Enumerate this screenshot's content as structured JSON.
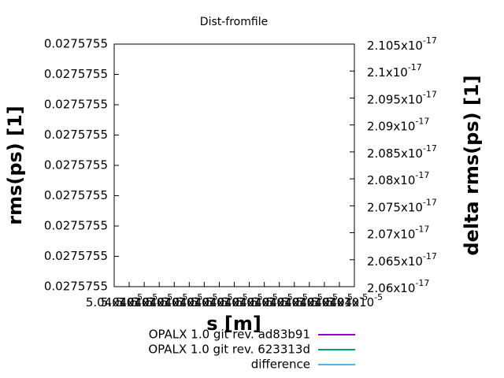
{
  "chart_data": {
    "type": "line",
    "title": "Dist-fromfile",
    "x_label": "s [m]",
    "y_label": "rms(ps) [1]",
    "y2_label": "delta rms(ps) [1]",
    "x": [],
    "series": [
      {
        "name": "OPALX 1.0 git rev. ad83b91",
        "color": "#9400d3",
        "values": []
      },
      {
        "name": "OPALX 1.0 git rev. 623313d",
        "color": "#009e73",
        "values": []
      },
      {
        "name": "difference",
        "color": "#56b4e9",
        "values": [],
        "axis": "y2"
      }
    ],
    "xlim": [
      5.04e-05,
      5.04016e-05
    ],
    "xticks": [
      {
        "value": 5.04e-05,
        "label": "5.04x10-5"
      },
      {
        "value": 5.04001e-05,
        "label": "5.04x10-5"
      },
      {
        "value": 5.04002e-05,
        "label": "5.04x10-5"
      },
      {
        "value": 5.04003e-05,
        "label": "5.04x10-5"
      },
      {
        "value": 5.04004e-05,
        "label": "5.04x10-5"
      },
      {
        "value": 5.04005e-05,
        "label": "5.04x10-5"
      },
      {
        "value": 5.04006e-05,
        "label": "5.04x10-5"
      },
      {
        "value": 5.04007e-05,
        "label": "5.04x10-5"
      },
      {
        "value": 5.04008e-05,
        "label": "5.04x10-5"
      },
      {
        "value": 5.04009e-05,
        "label": "5.04x10-5"
      },
      {
        "value": 5.0401e-05,
        "label": "5.04x10-5"
      },
      {
        "value": 5.04011e-05,
        "label": "5.04x10-5"
      },
      {
        "value": 5.04012e-05,
        "label": "5.04x10-5"
      },
      {
        "value": 5.04013e-05,
        "label": "5.04x10-5"
      },
      {
        "value": 5.04014e-05,
        "label": "5.04x10-5"
      },
      {
        "value": 5.04015e-05,
        "label": "5.04x10-5"
      },
      {
        "value": 5.04016e-05,
        "label": "5.04x10-5"
      }
    ],
    "ylim": [
      0.0275755,
      0.027575508
    ],
    "yticks": [
      {
        "value": 0.0275755,
        "label": "0.0275755"
      },
      {
        "value": 0.027575501,
        "label": "0.0275755"
      },
      {
        "value": 0.027575502,
        "label": "0.0275755"
      },
      {
        "value": 0.027575503,
        "label": "0.0275755"
      },
      {
        "value": 0.027575504,
        "label": "0.0275755"
      },
      {
        "value": 0.027575505,
        "label": "0.0275755"
      },
      {
        "value": 0.027575506,
        "label": "0.0275755"
      },
      {
        "value": 0.027575507,
        "label": "0.0275755"
      },
      {
        "value": 0.027575508,
        "label": "0.0275755"
      }
    ],
    "y2lim": [
      2.06e-17,
      2.105e-17
    ],
    "y2ticks": [
      {
        "value": 2.06e-17,
        "label": "2.06x10-17"
      },
      {
        "value": 2.065e-17,
        "label": "2.065x10-17"
      },
      {
        "value": 2.07e-17,
        "label": "2.07x10-17"
      },
      {
        "value": 2.075e-17,
        "label": "2.075x10-17"
      },
      {
        "value": 2.08e-17,
        "label": "2.08x10-17"
      },
      {
        "value": 2.085e-17,
        "label": "2.085x10-17"
      },
      {
        "value": 2.09e-17,
        "label": "2.09x10-17"
      },
      {
        "value": 2.095e-17,
        "label": "2.095x10-17"
      },
      {
        "value": 2.1e-17,
        "label": "2.1x10-17"
      },
      {
        "value": 2.105e-17,
        "label": "2.105x10-17"
      }
    ]
  }
}
